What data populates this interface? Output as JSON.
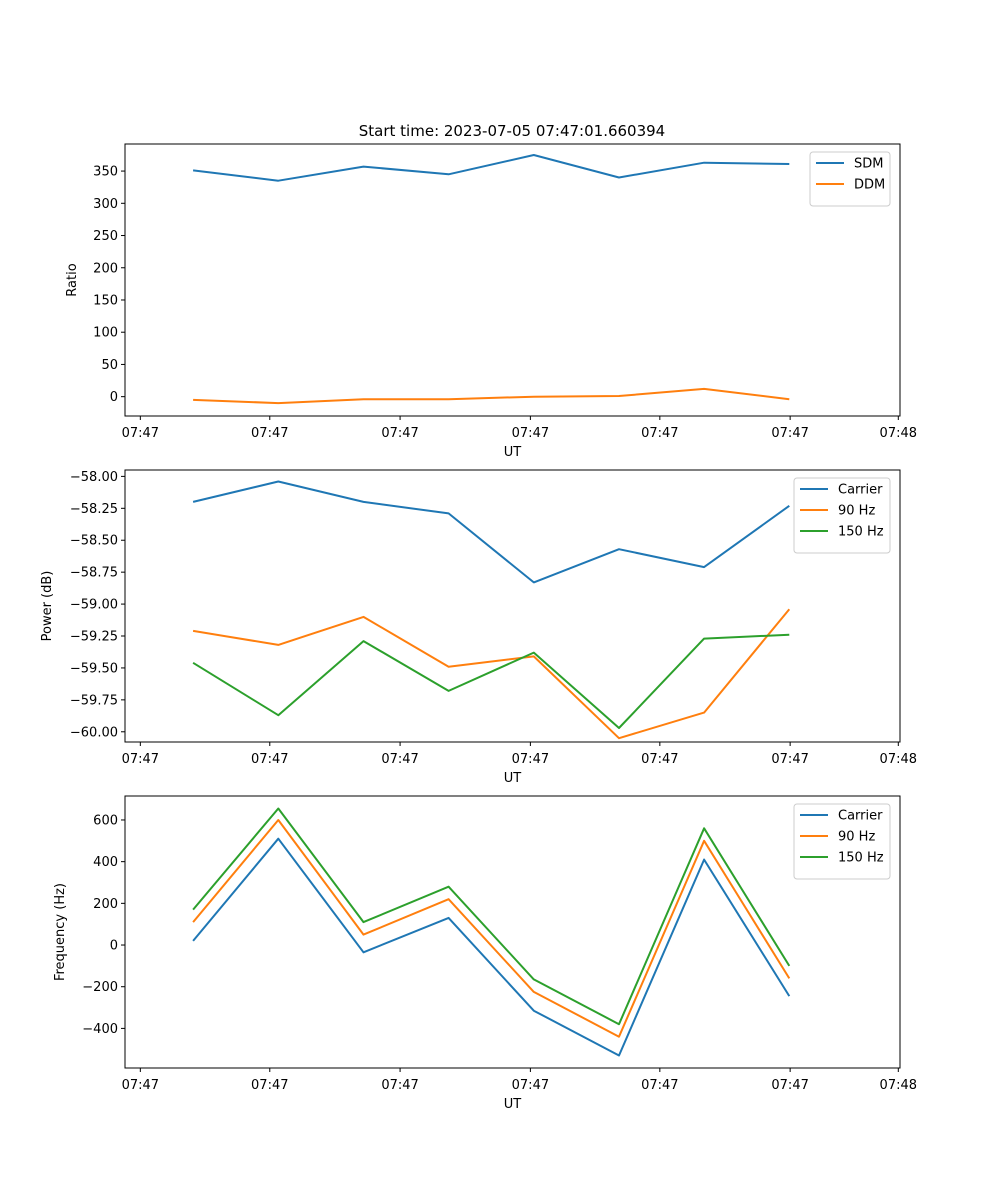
{
  "figure": {
    "title": "Start time: 2023-07-05 07:47:01.660394"
  },
  "colors": {
    "blue": "#1f77b4",
    "orange": "#ff7f0e",
    "green": "#2ca02c"
  },
  "chart_data": [
    {
      "type": "line",
      "title": "Start time: 2023-07-05 07:47:01.660394",
      "xlabel": "UT",
      "ylabel": "Ratio",
      "x": [
        1,
        2,
        3,
        4,
        5,
        6,
        7,
        8
      ],
      "xlim": [
        0.2,
        9.3
      ],
      "x_ticks": [
        0.38,
        1.9,
        3.43,
        4.96,
        6.48,
        8.01,
        9.28
      ],
      "x_tick_labels": [
        "07:47",
        "07:47",
        "07:47",
        "07:47",
        "07:47",
        "07:47",
        "07:48"
      ],
      "ylim": [
        -30,
        392
      ],
      "y_ticks": [
        0,
        50,
        100,
        150,
        200,
        250,
        300,
        350
      ],
      "y_tick_labels": [
        "0",
        "50",
        "100",
        "150",
        "200",
        "250",
        "300",
        "350"
      ],
      "legend": "top-right",
      "series": [
        {
          "name": "SDM",
          "color": "#1f77b4",
          "values": [
            351,
            335,
            357,
            345,
            375,
            340,
            363,
            361
          ]
        },
        {
          "name": "DDM",
          "color": "#ff7f0e",
          "values": [
            -5,
            -10,
            -4,
            -4,
            0,
            1,
            12,
            -4
          ]
        }
      ]
    },
    {
      "type": "line",
      "xlabel": "UT",
      "ylabel": "Power (dB)",
      "x": [
        1,
        2,
        3,
        4,
        5,
        6,
        7,
        8
      ],
      "xlim": [
        0.2,
        9.3
      ],
      "x_ticks": [
        0.38,
        1.9,
        3.43,
        4.96,
        6.48,
        8.01,
        9.28
      ],
      "x_tick_labels": [
        "07:47",
        "07:47",
        "07:47",
        "07:47",
        "07:47",
        "07:47",
        "07:48"
      ],
      "ylim": [
        -60.08,
        -57.95
      ],
      "y_ticks": [
        -60.0,
        -59.75,
        -59.5,
        -59.25,
        -59.0,
        -58.75,
        -58.5,
        -58.25,
        -58.0
      ],
      "y_tick_labels": [
        "−60.00",
        "−59.75",
        "−59.50",
        "−59.25",
        "−59.00",
        "−58.75",
        "−58.50",
        "−58.25",
        "−58.00"
      ],
      "legend": "top-right",
      "series": [
        {
          "name": "Carrier",
          "color": "#1f77b4",
          "values": [
            -58.2,
            -58.04,
            -58.2,
            -58.29,
            -58.83,
            -58.57,
            -58.71,
            -58.23
          ]
        },
        {
          "name": "90 Hz",
          "color": "#ff7f0e",
          "values": [
            -59.21,
            -59.32,
            -59.1,
            -59.49,
            -59.41,
            -60.05,
            -59.85,
            -59.04
          ]
        },
        {
          "name": "150 Hz",
          "color": "#2ca02c",
          "values": [
            -59.46,
            -59.87,
            -59.29,
            -59.68,
            -59.38,
            -59.97,
            -59.27,
            -59.24
          ]
        }
      ]
    },
    {
      "type": "line",
      "xlabel": "UT",
      "ylabel": "Frequency (Hz)",
      "x": [
        1,
        2,
        3,
        4,
        5,
        6,
        7,
        8
      ],
      "xlim": [
        0.2,
        9.3
      ],
      "x_ticks": [
        0.38,
        1.9,
        3.43,
        4.96,
        6.48,
        8.01,
        9.28
      ],
      "x_tick_labels": [
        "07:47",
        "07:47",
        "07:47",
        "07:47",
        "07:47",
        "07:47",
        "07:48"
      ],
      "ylim": [
        -590,
        715
      ],
      "y_ticks": [
        -400,
        -200,
        0,
        200,
        400,
        600
      ],
      "y_tick_labels": [
        "−400",
        "−200",
        "0",
        "200",
        "400",
        "600"
      ],
      "legend": "top-right",
      "series": [
        {
          "name": "Carrier",
          "color": "#1f77b4",
          "values": [
            20,
            510,
            -35,
            130,
            -315,
            -530,
            410,
            -245
          ]
        },
        {
          "name": "90 Hz",
          "color": "#ff7f0e",
          "values": [
            110,
            600,
            50,
            220,
            -225,
            -440,
            500,
            -160
          ]
        },
        {
          "name": "150 Hz",
          "color": "#2ca02c",
          "values": [
            170,
            655,
            110,
            280,
            -165,
            -380,
            560,
            -100
          ]
        }
      ]
    }
  ]
}
